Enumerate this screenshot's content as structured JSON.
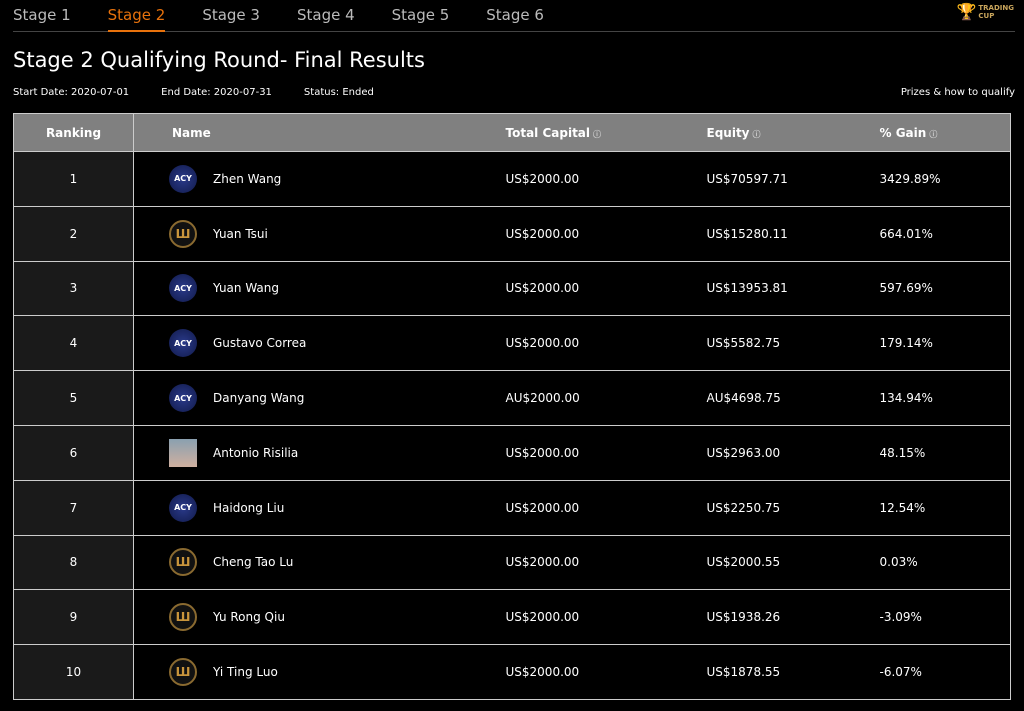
{
  "tabs": [
    "Stage 1",
    "Stage 2",
    "Stage 3",
    "Stage 4",
    "Stage 5",
    "Stage 6"
  ],
  "active_tab": "Stage 2",
  "logo": {
    "line1": "TRADING",
    "line2": "CUP"
  },
  "title": "Stage 2 Qualifying Round- Final Results",
  "meta": {
    "start": "Start Date: 2020-07-01",
    "end": "End Date: 2020-07-31",
    "status": "Status: Ended"
  },
  "prizes_link": "Prizes & how to qualify",
  "headers": {
    "ranking": "Ranking",
    "name": "Name",
    "capital": "Total Capital",
    "equity": "Equity",
    "gain": "% Gain"
  },
  "rows": [
    {
      "rank": "1",
      "avatar": "acy",
      "name": "Zhen Wang",
      "capital": "US$2000.00",
      "equity": "US$70597.71",
      "gain": "3429.89%"
    },
    {
      "rank": "2",
      "avatar": "gold",
      "name": "Yuan Tsui",
      "capital": "US$2000.00",
      "equity": "US$15280.11",
      "gain": "664.01%"
    },
    {
      "rank": "3",
      "avatar": "acy",
      "name": "Yuan Wang",
      "capital": "US$2000.00",
      "equity": "US$13953.81",
      "gain": "597.69%"
    },
    {
      "rank": "4",
      "avatar": "acy",
      "name": "Gustavo Correa",
      "capital": "US$2000.00",
      "equity": "US$5582.75",
      "gain": "179.14%"
    },
    {
      "rank": "5",
      "avatar": "acy",
      "name": "Danyang Wang",
      "capital": "AU$2000.00",
      "equity": "AU$4698.75",
      "gain": "134.94%"
    },
    {
      "rank": "6",
      "avatar": "photo",
      "name": "Antonio Risilia",
      "capital": "US$2000.00",
      "equity": "US$2963.00",
      "gain": "48.15%"
    },
    {
      "rank": "7",
      "avatar": "acy",
      "name": "Haidong Liu",
      "capital": "US$2000.00",
      "equity": "US$2250.75",
      "gain": "12.54%"
    },
    {
      "rank": "8",
      "avatar": "gold",
      "name": "Cheng Tao Lu",
      "capital": "US$2000.00",
      "equity": "US$2000.55",
      "gain": "0.03%"
    },
    {
      "rank": "9",
      "avatar": "gold",
      "name": "Yu Rong Qiu",
      "capital": "US$2000.00",
      "equity": "US$1938.26",
      "gain": "-3.09%"
    },
    {
      "rank": "10",
      "avatar": "gold",
      "name": "Yi Ting Luo",
      "capital": "US$2000.00",
      "equity": "US$1878.55",
      "gain": "-6.07%"
    }
  ]
}
